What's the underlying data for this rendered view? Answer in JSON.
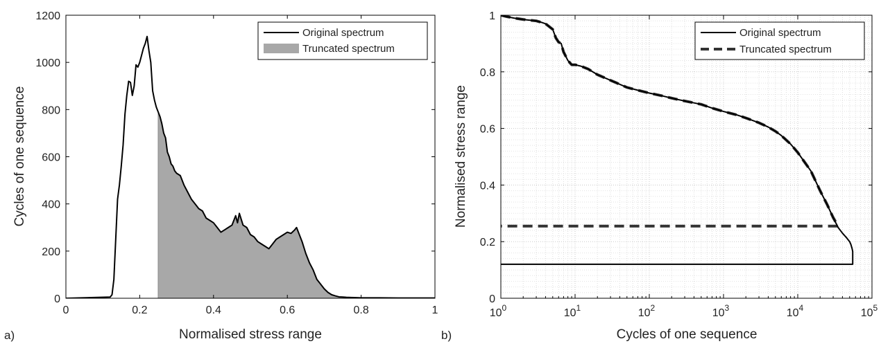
{
  "chart_data": [
    {
      "type": "area",
      "panel_label": "a)",
      "xlabel": "Normalised stress range",
      "ylabel": "Cycles of one sequence",
      "xlim": [
        0,
        1
      ],
      "ylim": [
        0,
        1200
      ],
      "xticks": [
        0,
        0.2,
        0.4,
        0.6,
        0.8,
        1
      ],
      "xtick_labels": [
        "0",
        "0.2",
        "0.4",
        "0.6",
        "0.8",
        "1"
      ],
      "yticks": [
        0,
        200,
        400,
        600,
        800,
        1000,
        1200
      ],
      "ytick_labels": [
        "0",
        "200",
        "400",
        "600",
        "800",
        "1000",
        "1200"
      ],
      "grid": false,
      "legend_position": "top-right",
      "series": [
        {
          "name": "Original spectrum",
          "style": "line",
          "color": "#000000",
          "x": [
            0.12,
            0.125,
            0.13,
            0.135,
            0.14,
            0.145,
            0.15,
            0.155,
            0.16,
            0.165,
            0.17,
            0.175,
            0.18,
            0.185,
            0.19,
            0.195,
            0.2,
            0.205,
            0.21,
            0.215,
            0.22,
            0.225,
            0.23,
            0.235,
            0.24,
            0.245,
            0.25,
            0.255,
            0.26,
            0.265,
            0.27,
            0.275,
            0.28,
            0.285,
            0.29,
            0.295,
            0.3,
            0.31,
            0.32,
            0.33,
            0.34,
            0.35,
            0.36,
            0.37,
            0.38,
            0.39,
            0.4,
            0.41,
            0.42,
            0.43,
            0.44,
            0.45,
            0.46,
            0.465,
            0.47,
            0.48,
            0.49,
            0.5,
            0.51,
            0.52,
            0.53,
            0.54,
            0.55,
            0.56,
            0.57,
            0.58,
            0.59,
            0.6,
            0.61,
            0.62,
            0.625,
            0.63,
            0.64,
            0.65,
            0.66,
            0.67,
            0.68,
            0.69,
            0.7,
            0.71,
            0.72,
            0.73,
            0.74,
            0.75,
            0.76,
            0.78,
            0.8,
            0.85,
            0.9,
            0.95,
            1.0
          ],
          "y": [
            5,
            15,
            80,
            250,
            420,
            480,
            560,
            650,
            780,
            860,
            920,
            915,
            860,
            900,
            990,
            980,
            1000,
            1030,
            1060,
            1080,
            1110,
            1050,
            1000,
            880,
            840,
            810,
            790,
            770,
            740,
            700,
            680,
            620,
            600,
            570,
            560,
            540,
            530,
            520,
            480,
            450,
            420,
            400,
            380,
            370,
            340,
            330,
            320,
            300,
            280,
            290,
            300,
            310,
            350,
            320,
            360,
            310,
            300,
            270,
            260,
            240,
            230,
            220,
            210,
            230,
            250,
            260,
            270,
            280,
            275,
            290,
            300,
            280,
            240,
            190,
            150,
            120,
            80,
            60,
            40,
            25,
            15,
            10,
            6,
            5,
            4,
            3,
            2,
            2,
            1,
            1,
            1
          ]
        },
        {
          "name": "Truncated spectrum",
          "style": "filled area",
          "color": "#a8a8a8",
          "x_start": 0.25
        }
      ]
    },
    {
      "type": "line",
      "panel_label": "b)",
      "xlabel": "Cycles of one sequence",
      "ylabel": "Normalised stress range",
      "xscale": "log",
      "xlim": [
        1,
        100000
      ],
      "ylim": [
        0,
        1
      ],
      "xticks": [
        1,
        10,
        100,
        1000,
        10000,
        100000
      ],
      "xtick_labels": [
        {
          "base": "10",
          "exp": "0"
        },
        {
          "base": "10",
          "exp": "1"
        },
        {
          "base": "10",
          "exp": "2"
        },
        {
          "base": "10",
          "exp": "3"
        },
        {
          "base": "10",
          "exp": "4"
        },
        {
          "base": "10",
          "exp": "5"
        }
      ],
      "yticks": [
        0,
        0.2,
        0.4,
        0.6,
        0.8,
        1
      ],
      "ytick_labels": [
        "0",
        "0.2",
        "0.4",
        "0.6",
        "0.8",
        "1"
      ],
      "grid": true,
      "legend_position": "top-right",
      "series": [
        {
          "name": "Original spectrum",
          "style": "solid",
          "color": "#000000",
          "x": [
            1,
            1.2,
            1.5,
            2,
            3,
            3.5,
            4,
            5,
            5.5,
            6,
            6.5,
            7,
            8,
            9,
            10,
            12,
            15,
            20,
            30,
            50,
            70,
            100,
            150,
            200,
            300,
            500,
            700,
            1000,
            1500,
            2000,
            3000,
            4000,
            5000,
            6000,
            8000,
            10000,
            15000,
            20000,
            25000,
            30000,
            35000,
            40000,
            45000,
            50000,
            52000,
            54000,
            55000,
            55000,
            1
          ],
          "y": [
            1.0,
            0.995,
            0.99,
            0.985,
            0.98,
            0.975,
            0.97,
            0.95,
            0.92,
            0.905,
            0.9,
            0.87,
            0.84,
            0.825,
            0.825,
            0.82,
            0.81,
            0.79,
            0.77,
            0.745,
            0.735,
            0.725,
            0.715,
            0.707,
            0.697,
            0.685,
            0.672,
            0.66,
            0.648,
            0.637,
            0.62,
            0.605,
            0.59,
            0.575,
            0.545,
            0.515,
            0.45,
            0.38,
            0.33,
            0.285,
            0.25,
            0.23,
            0.215,
            0.2,
            0.19,
            0.175,
            0.165,
            0.12,
            0.12
          ]
        },
        {
          "name": "Truncated spectrum",
          "style": "dashed",
          "color": "#333333",
          "x": [
            1,
            1.2,
            1.5,
            2,
            3,
            3.5,
            4,
            5,
            5.5,
            6,
            6.5,
            7,
            8,
            9,
            10,
            12,
            15,
            20,
            30,
            50,
            70,
            100,
            150,
            200,
            300,
            500,
            700,
            1000,
            1500,
            2000,
            3000,
            4000,
            5000,
            6000,
            8000,
            10000,
            15000,
            20000,
            25000,
            30000,
            35000,
            35000,
            1
          ],
          "y": [
            1.0,
            0.995,
            0.99,
            0.985,
            0.98,
            0.975,
            0.97,
            0.95,
            0.92,
            0.905,
            0.9,
            0.87,
            0.84,
            0.825,
            0.825,
            0.82,
            0.81,
            0.79,
            0.77,
            0.745,
            0.735,
            0.725,
            0.715,
            0.707,
            0.697,
            0.685,
            0.672,
            0.66,
            0.648,
            0.637,
            0.62,
            0.605,
            0.59,
            0.575,
            0.545,
            0.515,
            0.45,
            0.38,
            0.33,
            0.285,
            0.255,
            0.255,
            0.255
          ]
        }
      ]
    }
  ]
}
